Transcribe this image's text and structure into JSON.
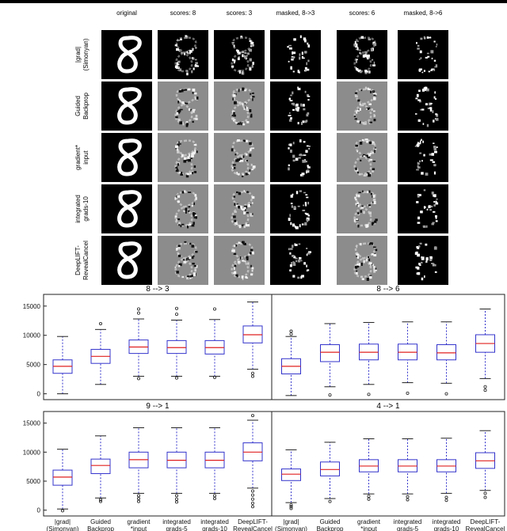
{
  "figure": {
    "columns": [
      "original",
      "scores: 8",
      "scores: 3",
      "masked, 8->3",
      "scores: 6",
      "masked, 8->6"
    ],
    "rows": [
      {
        "line1": "|grad|",
        "line2": "(Simonyan)"
      },
      {
        "line1": "Guided",
        "line2": "Backprop"
      },
      {
        "line1": "gradient*",
        "line2": "input"
      },
      {
        "line1": "integrated",
        "line2": "grads-10"
      },
      {
        "line1": "DeepLIFT-",
        "line2": "RevealCancel"
      }
    ],
    "colors": {
      "box": "#3333cc",
      "median": "#e02020",
      "whisker": "#3333cc",
      "flier": "#222222",
      "panel_black": "#000000",
      "panel_gray": "#8c8c8c",
      "digit": "#ffffff"
    }
  },
  "chart_data": [
    {
      "type": "box",
      "title": "8 --> 3",
      "ylim": [
        -1000,
        17000
      ],
      "yticks": [
        0,
        5000,
        10000,
        15000
      ],
      "categories": [
        "|grad|\n(Simonyan)",
        "Guided\nBackprop",
        "gradient\n*input",
        "integrated\ngrads-5",
        "integrated\ngrads-10",
        "DeepLIFT-\nRevealCancel"
      ],
      "boxes": [
        {
          "whislo": 0,
          "q1": 3500,
          "med": 4700,
          "q3": 5800,
          "whishi": 9800,
          "fliers": []
        },
        {
          "whislo": 1600,
          "q1": 5200,
          "med": 6400,
          "q3": 7600,
          "whishi": 11000,
          "fliers": [
            12000
          ]
        },
        {
          "whislo": 3000,
          "q1": 6900,
          "med": 8000,
          "q3": 9200,
          "whishi": 12800,
          "fliers": [
            2600,
            13800,
            14500
          ]
        },
        {
          "whislo": 3000,
          "q1": 6900,
          "med": 7900,
          "q3": 9100,
          "whishi": 12600,
          "fliers": [
            2700,
            13600,
            14600
          ]
        },
        {
          "whislo": 3000,
          "q1": 6800,
          "med": 7900,
          "q3": 9100,
          "whishi": 12700,
          "fliers": [
            2800,
            14500
          ]
        },
        {
          "whislo": 4200,
          "q1": 8700,
          "med": 10100,
          "q3": 11600,
          "whishi": 15700,
          "fliers": [
            3500,
            3000
          ]
        }
      ]
    },
    {
      "type": "box",
      "title": "8 --> 6",
      "ylim": [
        -1000,
        17000
      ],
      "yticks": [
        0,
        5000,
        10000,
        15000
      ],
      "categories": [
        "|grad|\n(Simonyan)",
        "Guided\nBackprop",
        "gradient\n*input",
        "integrated\ngrads-5",
        "integrated\ngrads-10",
        "DeepLIFT-\nRevealCancel"
      ],
      "boxes": [
        {
          "whislo": -300,
          "q1": 3400,
          "med": 4700,
          "q3": 6000,
          "whishi": 9800,
          "fliers": [
            10700,
            10200
          ]
        },
        {
          "whislo": 1200,
          "q1": 5500,
          "med": 7100,
          "q3": 8400,
          "whishi": 12000,
          "fliers": [
            -200
          ]
        },
        {
          "whislo": 1600,
          "q1": 5800,
          "med": 7100,
          "q3": 8500,
          "whishi": 12200,
          "fliers": [
            -100
          ]
        },
        {
          "whislo": 1900,
          "q1": 5800,
          "med": 7100,
          "q3": 8500,
          "whishi": 12300,
          "fliers": [
            100
          ]
        },
        {
          "whislo": 1800,
          "q1": 5800,
          "med": 7000,
          "q3": 8400,
          "whishi": 12300,
          "fliers": [
            0
          ]
        },
        {
          "whislo": 2600,
          "q1": 7100,
          "med": 8600,
          "q3": 10100,
          "whishi": 14500,
          "fliers": [
            1200,
            600
          ]
        }
      ]
    },
    {
      "type": "box",
      "title": "9 --> 1",
      "ylim": [
        -1000,
        17000
      ],
      "yticks": [
        0,
        5000,
        10000,
        15000
      ],
      "categories": [
        "|grad|\n(Simonyan)",
        "Guided\nBackprop",
        "gradient\n*input",
        "integrated\ngrads-5",
        "integrated\ngrads-10",
        "DeepLIFT-\nRevealCancel"
      ],
      "boxes": [
        {
          "whislo": 200,
          "q1": 4300,
          "med": 5700,
          "q3": 6900,
          "whishi": 10500,
          "fliers": [
            -100
          ]
        },
        {
          "whislo": 2100,
          "q1": 6300,
          "med": 7700,
          "q3": 8800,
          "whishi": 12800,
          "fliers": [
            1800,
            1500
          ]
        },
        {
          "whislo": 2900,
          "q1": 7300,
          "med": 8700,
          "q3": 10000,
          "whishi": 14200,
          "fliers": [
            2500,
            2000,
            1500
          ]
        },
        {
          "whislo": 2900,
          "q1": 7300,
          "med": 8600,
          "q3": 10000,
          "whishi": 14200,
          "fliers": [
            2500,
            1900,
            1400
          ]
        },
        {
          "whislo": 2900,
          "q1": 7300,
          "med": 8600,
          "q3": 10000,
          "whishi": 14200,
          "fliers": [
            2500,
            2000
          ]
        },
        {
          "whislo": 3800,
          "q1": 8500,
          "med": 10000,
          "q3": 11600,
          "whishi": 15500,
          "fliers": [
            3300,
            2600,
            1900,
            1200,
            600,
            16300
          ]
        }
      ]
    },
    {
      "type": "box",
      "title": "4 --> 1",
      "ylim": [
        -1000,
        17000
      ],
      "yticks": [
        0,
        5000,
        10000,
        15000
      ],
      "categories": [
        "|grad|\n(Simonyan)",
        "Guided\nBackprop",
        "gradient\n*input",
        "integrated\ngrads-5",
        "integrated\ngrads-10",
        "DeepLIFT-\nRevealCancel"
      ],
      "boxes": [
        {
          "whislo": 1300,
          "q1": 5100,
          "med": 6200,
          "q3": 7100,
          "whishi": 10400,
          "fliers": [
            900,
            600,
            300
          ]
        },
        {
          "whislo": 2000,
          "q1": 5900,
          "med": 7000,
          "q3": 8300,
          "whishi": 11700,
          "fliers": [
            1500
          ]
        },
        {
          "whislo": 2800,
          "q1": 6600,
          "med": 7600,
          "q3": 8700,
          "whishi": 12300,
          "fliers": [
            2400,
            1900
          ]
        },
        {
          "whislo": 2800,
          "q1": 6600,
          "med": 7600,
          "q3": 8700,
          "whishi": 12300,
          "fliers": [
            2300,
            1800
          ]
        },
        {
          "whislo": 2900,
          "q1": 6600,
          "med": 7600,
          "q3": 8700,
          "whishi": 12400,
          "fliers": [
            2200,
            1700
          ]
        },
        {
          "whislo": 3400,
          "q1": 7200,
          "med": 8500,
          "q3": 9900,
          "whishi": 13700,
          "fliers": [
            2900,
            2200
          ]
        }
      ]
    }
  ]
}
